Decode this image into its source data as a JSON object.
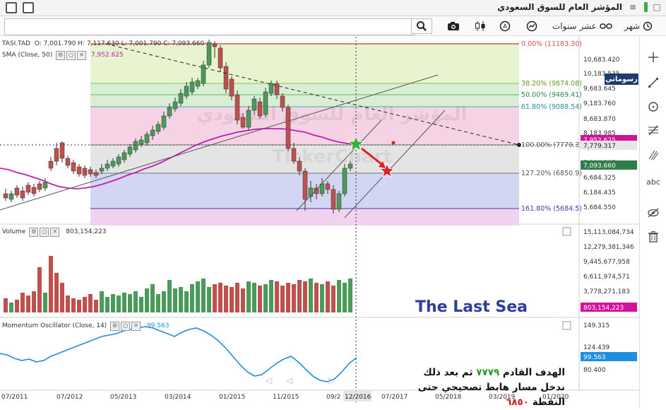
{
  "titlebar": {
    "title": "المؤشر العام للسوق السعودي",
    "bars_icon": "bars-icon",
    "close_icon": "close-icon"
  },
  "toolbar": {
    "search_value": "",
    "period_month": "شهر",
    "period_tenyears": "عشر سنوات",
    "clock_icon": "clock-icon",
    "compare_icon": "compare-icon",
    "indicator_icon": "indicator-icon",
    "alert_icon": "alert-icon",
    "candles_icon": "candles-icon",
    "camera_icon": "camera-icon"
  },
  "brand": {
    "label": "رسوماتي"
  },
  "price_panel": {
    "symbol": "TASI.TAD",
    "ohlc": "O: 7,001.790  H: 7,117.630  L: 7,001.790  C: 7,093.660",
    "sma_label": "SMA  (Close, 50)",
    "sma_value": "7,952.625",
    "y_ticks": [
      "10,683.420",
      "10,183.535",
      "9,683.645",
      "9,183.760",
      "8,683.870",
      "8,183.985",
      "7,684.095",
      "7,184.205",
      "6,684.325",
      "6,184.435",
      "5,684.550"
    ],
    "tag_crosshair": "7,779.317",
    "tag_last": "7,093.660",
    "tag_sma": "7,952.625",
    "fib": [
      {
        "label": "0.00% (11183.30)",
        "color": "#d9534f"
      },
      {
        "label": "38.20% (9874.08)",
        "color": "#6a9a2a"
      },
      {
        "label": "50.00% (9469.41)",
        "color": "#2e8b57"
      },
      {
        "label": "61.80% (9088.54)",
        "color": "#2a8fa0"
      },
      {
        "label": "100.00% (7779.3)",
        "color": "#555"
      },
      {
        "label": "127.20% (6850.9)",
        "color": "#555"
      },
      {
        "label": "161.80% (5684.5)",
        "color": "#3a3ab0"
      }
    ]
  },
  "volume_panel": {
    "label": "Volume",
    "value": "803,154,223",
    "y_ticks": [
      "15,113,084,734",
      "12,279,381,346",
      "9,445,677,958",
      "6,611,974,571",
      "3,778,271,183"
    ],
    "tag": "803,154,223"
  },
  "momentum_panel": {
    "label": "Momentum Oscillator  (Close, 14)",
    "value": "99.563",
    "y_ticks": [
      "149.315",
      "124.439",
      "80.400"
    ],
    "tag": "99.563"
  },
  "x_axis": {
    "labels": [
      "07/2011",
      "07/2012",
      "05/2013",
      "03/2014",
      "01/2015",
      "11/2015",
      "09/2",
      "12/2016",
      "07/2017",
      "05/2018",
      "03/2019",
      "01/2020"
    ],
    "current": "12/2016"
  },
  "annotation": {
    "line1_a": "الهدف القادم",
    "line1_num": "٧٧٧٩",
    "line1_b": "ثم بعد ذلك",
    "line2": "ندخل مسار هابط تصحيحي حتى",
    "line3_a": "النقطة",
    "line3_num": "٦٨٥٠"
  },
  "overlay_title": "The Last Sea",
  "watermark": "المؤشر العام للسوق السعودي",
  "watermark2": "TickerChart",
  "right_tools": [
    "cursor-cross-icon",
    "trendline-icon",
    "circle-icon",
    "fibonacci-icon",
    "pitchfork-icon",
    "text-icon",
    "hide-icon",
    "trash-icon"
  ],
  "text_tool_label": "abc",
  "colors": {
    "up": "#4a9a5a",
    "down": "#c0504d",
    "sma": "#c020b0",
    "momentum": "#1e8ee0",
    "panel_tag": "#d1129a",
    "momentum_tag": "#1e8ee0",
    "last_tag": "#2e7d4a"
  }
}
